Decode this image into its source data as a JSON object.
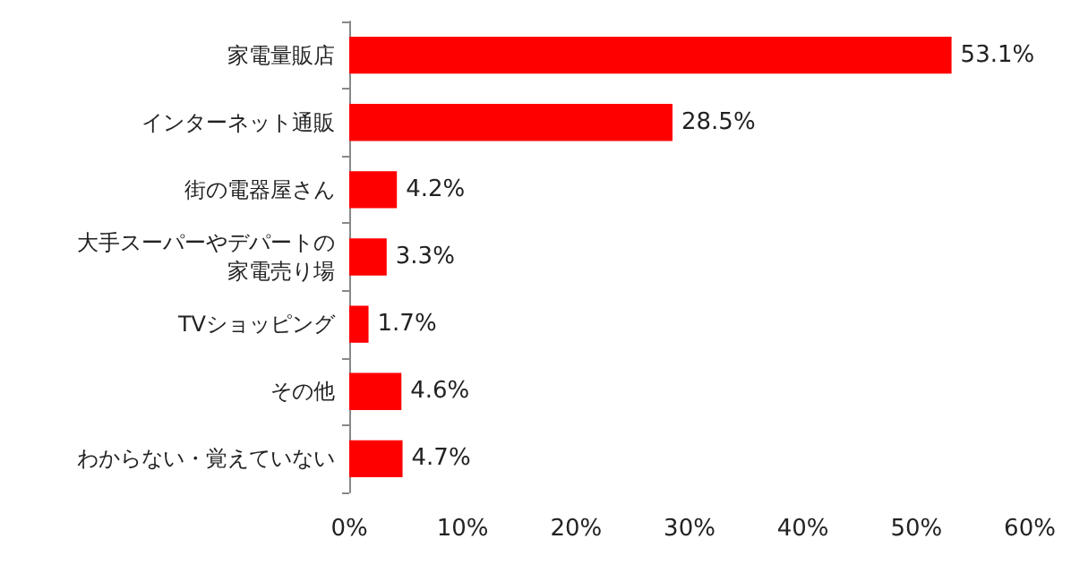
{
  "chart_data": {
    "type": "bar",
    "orientation": "horizontal",
    "categories": [
      "家電量販店",
      "インターネット通販",
      "街の電器屋さん",
      "大手スーパーやデパートの家電売り場",
      "TVショッピング",
      "その他",
      "わからない・覚えていない"
    ],
    "values": [
      53.1,
      28.5,
      4.2,
      3.3,
      1.7,
      4.6,
      4.7
    ],
    "value_labels": [
      "53.1%",
      "28.5%",
      "4.2%",
      "3.3%",
      "1.7%",
      "4.6%",
      "4.7%"
    ],
    "color": "#ff0000",
    "xlim": [
      0,
      60
    ],
    "xticks": [
      {
        "value": 0,
        "label": "0%"
      },
      {
        "value": 10,
        "label": "10%"
      },
      {
        "value": 20,
        "label": "20%"
      },
      {
        "value": 30,
        "label": "30%"
      },
      {
        "value": 40,
        "label": "40%"
      },
      {
        "value": 50,
        "label": "50%"
      },
      {
        "value": 60,
        "label": "60%"
      }
    ],
    "grid": false
  }
}
